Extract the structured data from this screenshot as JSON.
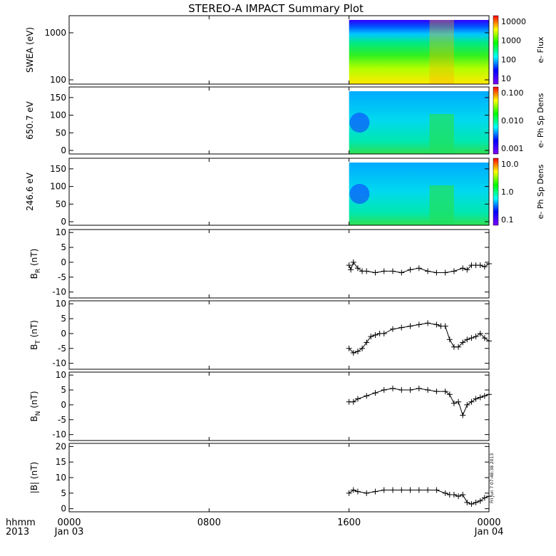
{
  "title": "STEREO-A IMPACT Summary Plot",
  "footer": {
    "hhmm_label": "hhmm",
    "year_label": "2013",
    "stamp": "Fri Jun  7 07:48:38 2013"
  },
  "time_axis": {
    "ticks": [
      {
        "t": 0,
        "time": "0000",
        "date": "Jan 03"
      },
      {
        "t": 8,
        "time": "0800",
        "date": ""
      },
      {
        "t": 16,
        "time": "1600",
        "date": ""
      },
      {
        "t": 24,
        "time": "0000",
        "date": "Jan 04"
      }
    ],
    "data_start_hour": 16.0,
    "range_hours": [
      0,
      24
    ]
  },
  "colors": {
    "frame": "#000000",
    "rainbow": [
      "#ff0000",
      "#ffff00",
      "#00ff00",
      "#00ffff",
      "#0000ff",
      "#7f00ff"
    ]
  },
  "chart_data": [
    {
      "type": "heatmap",
      "ylabel": "SWEA (eV)",
      "yscale": "log",
      "yticks": [
        "100",
        "1000"
      ],
      "colorbar": {
        "label": "e- Flux",
        "scale": "log",
        "ticks": [
          "10",
          "100",
          "1000",
          "10000"
        ]
      }
    },
    {
      "type": "heatmap",
      "ylabel": "650.7 eV",
      "yticks": [
        "0",
        "50",
        "100",
        "150"
      ],
      "ylim": [
        -10,
        180
      ],
      "colorbar": {
        "label": "e- Ph Sp Dens",
        "scale": "log",
        "ticks": [
          "0.001",
          "0.010",
          "0.100"
        ]
      }
    },
    {
      "type": "heatmap",
      "ylabel": "246.6 eV",
      "yticks": [
        "0",
        "50",
        "100",
        "150"
      ],
      "ylim": [
        -10,
        180
      ],
      "colorbar": {
        "label": "e- Ph Sp Dens",
        "scale": "log",
        "ticks": [
          "0.1",
          "1.0",
          "10.0"
        ]
      }
    },
    {
      "type": "scatter",
      "ylabel": "B",
      "ylabel_sub": "R",
      "ylabel_unit": "(nT)",
      "ylim": [
        -12,
        11
      ],
      "yticks": [
        "-10",
        "-5",
        "0",
        "5",
        "10"
      ],
      "x": [
        16.0,
        16.1,
        16.25,
        16.5,
        16.75,
        17.0,
        17.5,
        18.0,
        18.5,
        19.0,
        19.5,
        20.0,
        20.5,
        21.0,
        21.5,
        22.0,
        22.5,
        22.75,
        23.0,
        23.25,
        23.5,
        23.75,
        24.0
      ],
      "y": [
        -1.0,
        -2.5,
        0.0,
        -2.0,
        -3.0,
        -3.0,
        -3.5,
        -3.0,
        -3.0,
        -3.5,
        -2.5,
        -2.0,
        -3.0,
        -3.5,
        -3.5,
        -3.0,
        -2.0,
        -2.5,
        -1.0,
        -1.0,
        -1.0,
        -1.5,
        -0.5
      ]
    },
    {
      "type": "scatter",
      "ylabel": "B",
      "ylabel_sub": "T",
      "ylabel_unit": "(nT)",
      "ylim": [
        -12,
        11
      ],
      "yticks": [
        "-10",
        "-5",
        "0",
        "5",
        "10"
      ],
      "x": [
        16.0,
        16.25,
        16.5,
        16.75,
        17.0,
        17.25,
        17.5,
        17.75,
        18.0,
        18.5,
        19.0,
        19.5,
        20.0,
        20.5,
        21.0,
        21.25,
        21.5,
        21.75,
        22.0,
        22.25,
        22.5,
        22.75,
        23.0,
        23.25,
        23.5,
        23.75,
        24.0
      ],
      "y": [
        -5.0,
        -6.5,
        -6.0,
        -5.0,
        -3.0,
        -1.0,
        -0.5,
        0.0,
        0.0,
        1.5,
        2.0,
        2.5,
        3.0,
        3.5,
        3.0,
        2.5,
        2.5,
        -2.0,
        -4.5,
        -4.5,
        -3.0,
        -2.0,
        -1.5,
        -1.0,
        0.0,
        -1.5,
        -2.5
      ]
    },
    {
      "type": "scatter",
      "ylabel": "B",
      "ylabel_sub": "N",
      "ylabel_unit": "(nT)",
      "ylim": [
        -12,
        11
      ],
      "yticks": [
        "-10",
        "-5",
        "0",
        "5",
        "10"
      ],
      "x": [
        16.0,
        16.25,
        16.5,
        17.0,
        17.5,
        18.0,
        18.5,
        19.0,
        19.5,
        20.0,
        20.5,
        21.0,
        21.5,
        21.75,
        22.0,
        22.25,
        22.5,
        22.75,
        23.0,
        23.25,
        23.5,
        23.75,
        24.0
      ],
      "y": [
        1.0,
        1.0,
        2.0,
        3.0,
        4.0,
        5.0,
        5.5,
        5.0,
        5.0,
        5.5,
        5.0,
        4.5,
        4.5,
        3.5,
        0.5,
        1.0,
        -3.5,
        0.0,
        1.0,
        2.0,
        2.5,
        3.0,
        3.5
      ]
    },
    {
      "type": "scatter",
      "ylabel": "|B|",
      "ylabel_unit": "(nT)",
      "ylim": [
        -1,
        21
      ],
      "yticks": [
        "0",
        "5",
        "10",
        "15",
        "20"
      ],
      "x": [
        16.0,
        16.25,
        16.5,
        17.0,
        17.5,
        18.0,
        18.5,
        19.0,
        19.5,
        20.0,
        20.5,
        21.0,
        21.5,
        21.75,
        22.0,
        22.25,
        22.5,
        22.75,
        23.0,
        23.25,
        23.5,
        23.75,
        24.0
      ],
      "y": [
        5.0,
        6.0,
        5.5,
        5.0,
        5.5,
        6.0,
        6.0,
        6.0,
        6.0,
        6.0,
        6.0,
        6.0,
        5.0,
        4.5,
        4.5,
        4.0,
        4.5,
        2.0,
        1.5,
        2.0,
        2.5,
        3.5,
        4.0
      ]
    }
  ]
}
